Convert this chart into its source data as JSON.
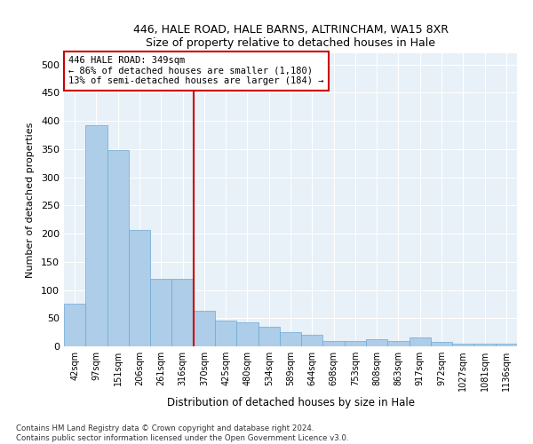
{
  "title1": "446, HALE ROAD, HALE BARNS, ALTRINCHAM, WA15 8XR",
  "title2": "Size of property relative to detached houses in Hale",
  "xlabel": "Distribution of detached houses by size in Hale",
  "ylabel": "Number of detached properties",
  "footnote1": "Contains HM Land Registry data © Crown copyright and database right 2024.",
  "footnote2": "Contains public sector information licensed under the Open Government Licence v3.0.",
  "annotation_line1": "446 HALE ROAD: 349sqm",
  "annotation_line2": "← 86% of detached houses are smaller (1,180)",
  "annotation_line3": "13% of semi-detached houses are larger (184) →",
  "bar_color": "#aecde8",
  "bar_edge_color": "#6aaad4",
  "vline_color": "#cc0000",
  "annotation_box_color": "#cc0000",
  "categories": [
    "42sqm",
    "97sqm",
    "151sqm",
    "206sqm",
    "261sqm",
    "316sqm",
    "370sqm",
    "425sqm",
    "480sqm",
    "534sqm",
    "589sqm",
    "644sqm",
    "698sqm",
    "753sqm",
    "808sqm",
    "863sqm",
    "917sqm",
    "972sqm",
    "1027sqm",
    "1081sqm",
    "1136sqm"
  ],
  "values": [
    75,
    393,
    348,
    207,
    120,
    120,
    63,
    45,
    43,
    35,
    25,
    20,
    10,
    10,
    12,
    10,
    15,
    8,
    5,
    5,
    5
  ],
  "ylim": [
    0,
    520
  ],
  "yticks": [
    0,
    50,
    100,
    150,
    200,
    250,
    300,
    350,
    400,
    450,
    500
  ],
  "vline_index": 6,
  "bg_color": "#e8f0f8",
  "figwidth": 6.0,
  "figheight": 5.0,
  "dpi": 100
}
